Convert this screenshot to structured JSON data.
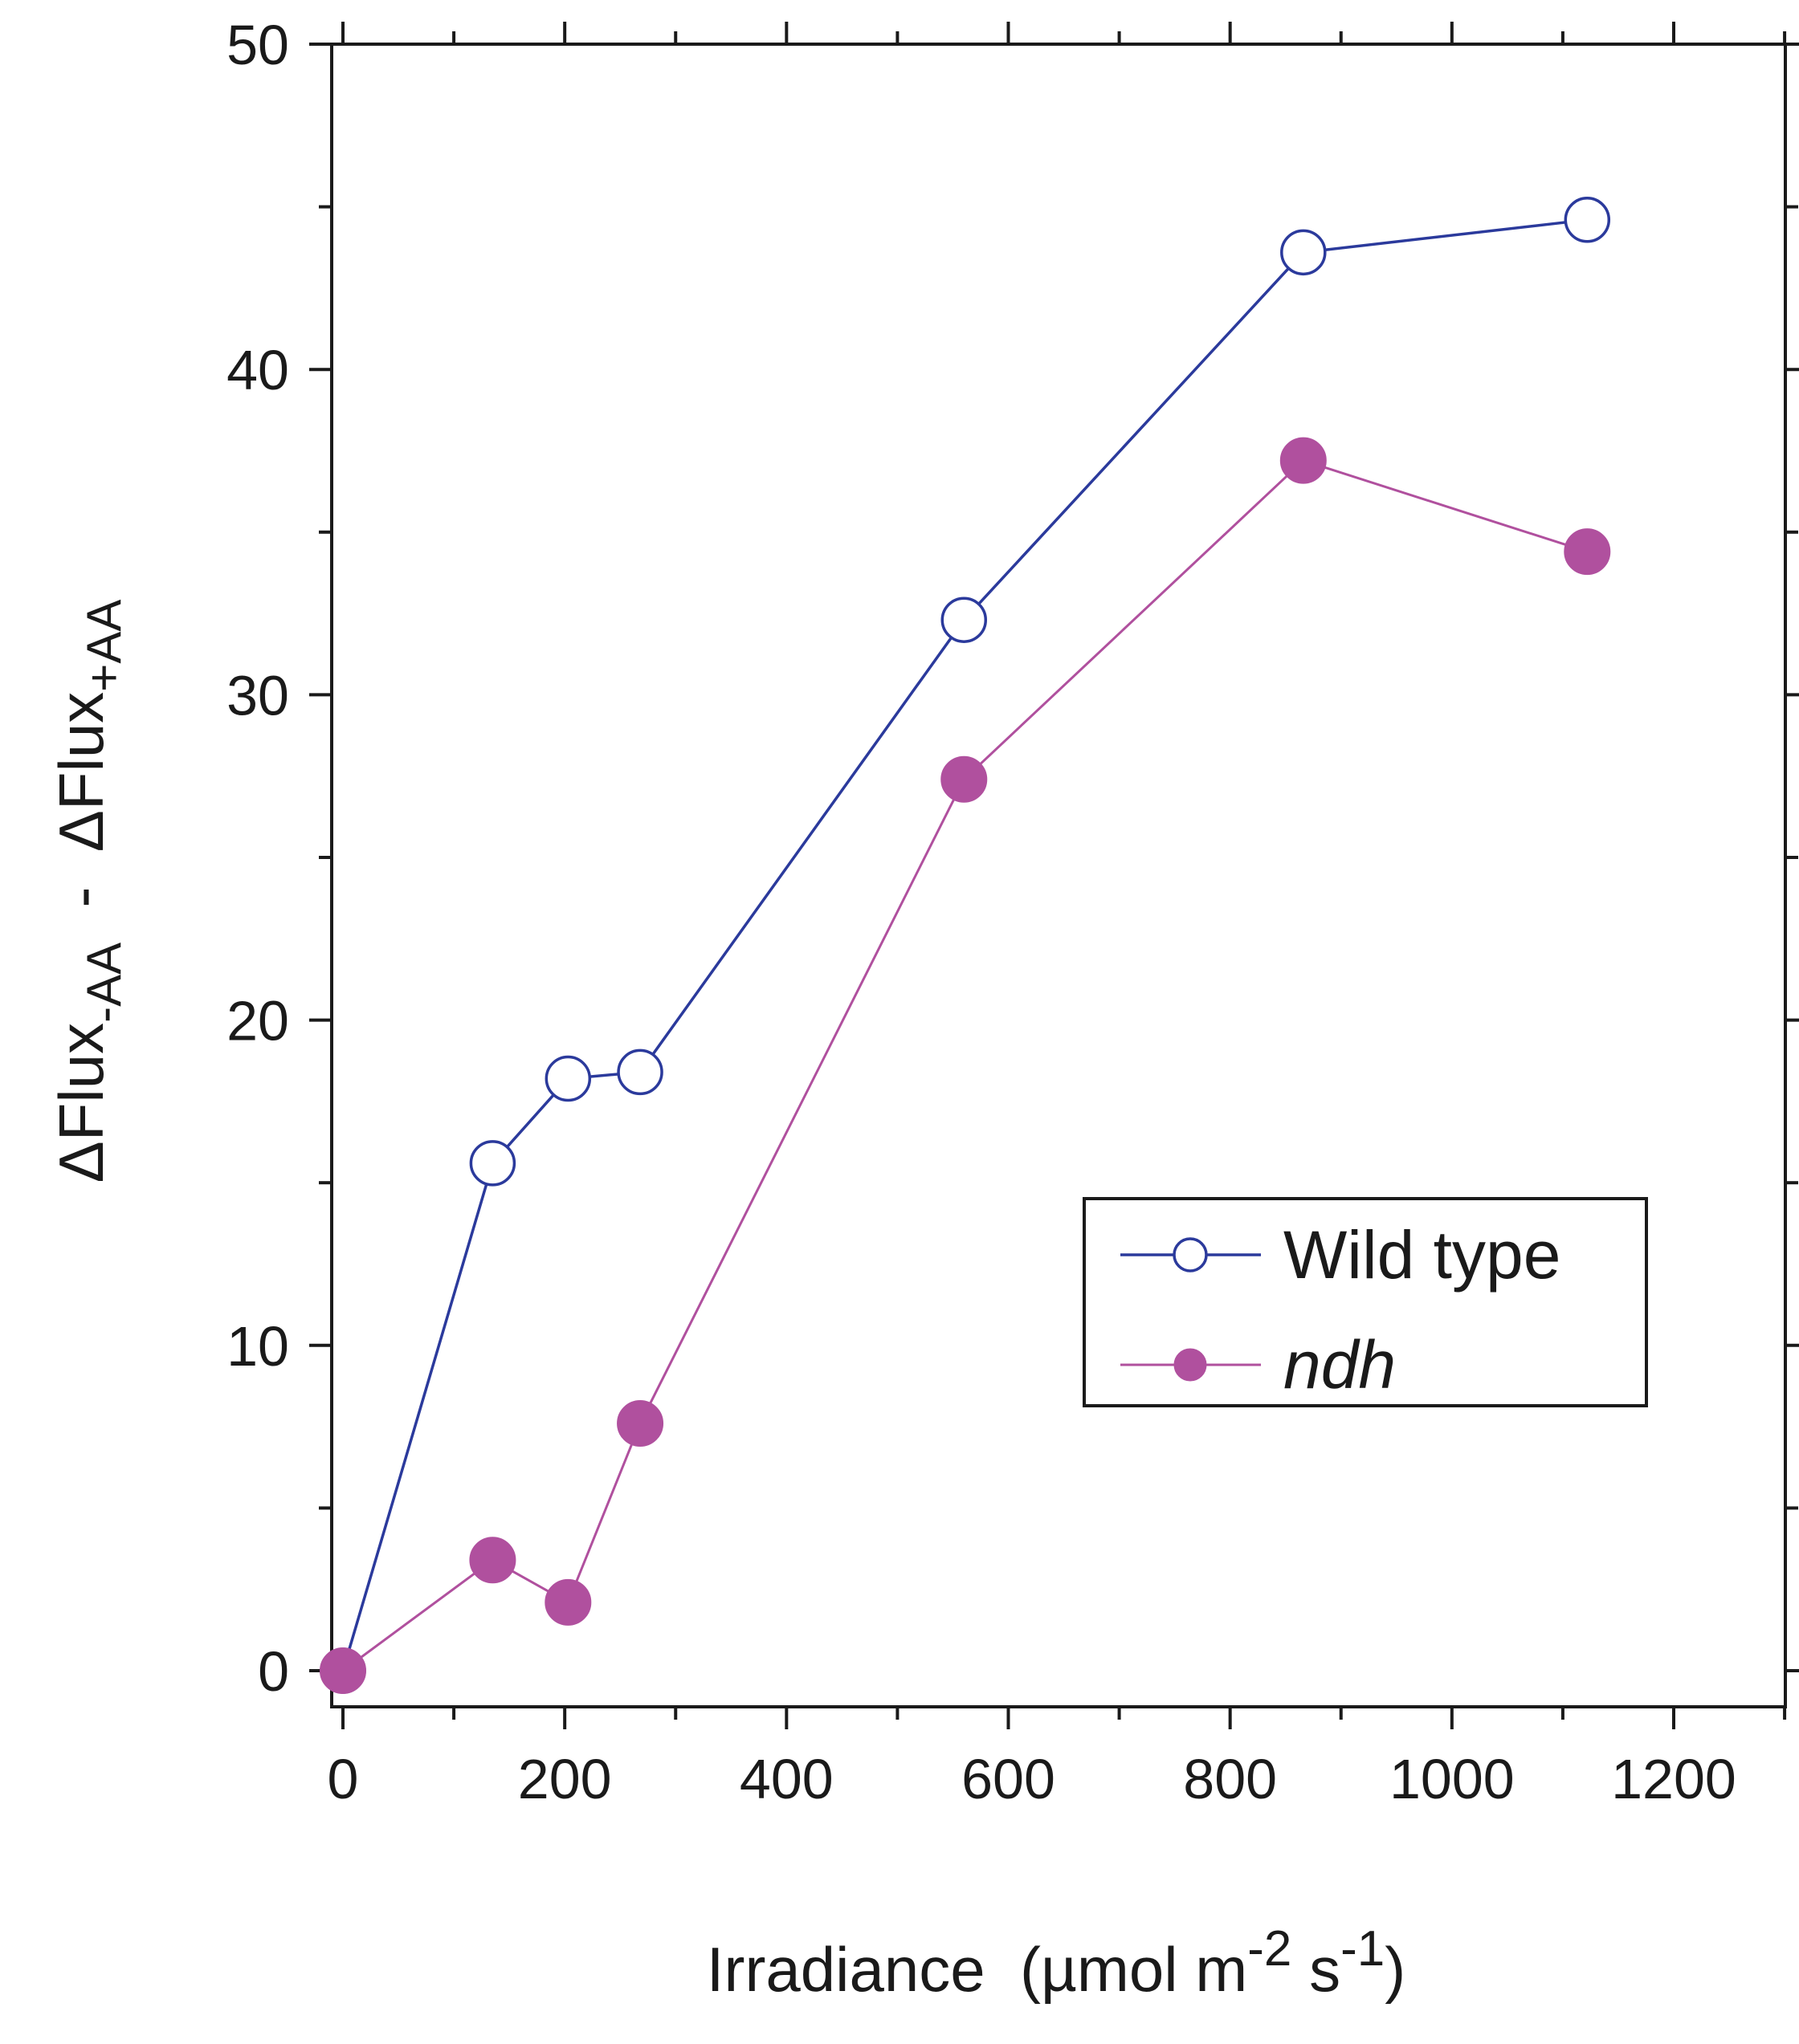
{
  "chart_data": {
    "type": "line",
    "title": "",
    "xlabel": {
      "main": "Irradiance  (",
      "mu": "µ",
      "unit1": "mol m",
      "exp1": "-2",
      "unit2": " s",
      "exp2": "-1",
      "close": ")"
    },
    "ylabel": {
      "delta1": "ΔFlux",
      "sub1": "-AA",
      "minus": "  -  ",
      "delta2": "ΔFlux",
      "sub2": "+AA"
    },
    "xlim": [
      -10,
      1300
    ],
    "ylim": [
      -1,
      50
    ],
    "xticks": [
      0,
      200,
      400,
      600,
      800,
      1000,
      1200
    ],
    "xtick_labels": [
      "0",
      "200",
      "400",
      "600",
      "800",
      "1000",
      "1200"
    ],
    "yticks": [
      0,
      10,
      20,
      30,
      40,
      50
    ],
    "ytick_labels": [
      "0",
      "10",
      "20",
      "30",
      "40",
      "50"
    ],
    "legend_position": "bottom-right",
    "series": [
      {
        "name": "Wild type",
        "italic": false,
        "marker": "open-circle",
        "color": "#2b3a9c",
        "x": [
          0,
          135,
          203,
          268,
          560,
          866,
          1122
        ],
        "y": [
          0,
          15.6,
          18.2,
          18.4,
          32.3,
          43.6,
          44.6
        ]
      },
      {
        "name": "ndh",
        "italic": true,
        "marker": "filled-circle",
        "color": "#b0509e",
        "x": [
          0,
          135,
          203,
          268,
          560,
          866,
          1122
        ],
        "y": [
          0,
          3.4,
          2.1,
          7.6,
          27.4,
          37.2,
          34.4
        ]
      }
    ]
  }
}
